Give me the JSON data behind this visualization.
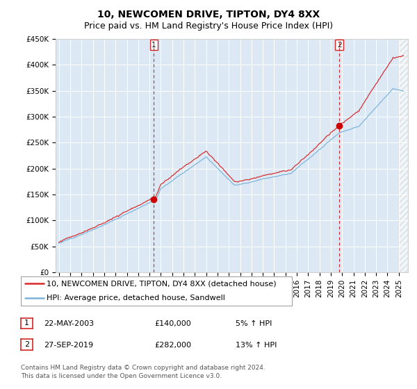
{
  "title": "10, NEWCOMEN DRIVE, TIPTON, DY4 8XX",
  "subtitle": "Price paid vs. HM Land Registry's House Price Index (HPI)",
  "bg_color": "#dce9f5",
  "grid_color": "#ffffff",
  "hpi_color": "#7ab3d9",
  "price_color": "#d62728",
  "marker_color": "#cc0000",
  "vline_color": "#d62728",
  "ylim": [
    0,
    450000
  ],
  "yticks": [
    0,
    50000,
    100000,
    150000,
    200000,
    250000,
    300000,
    350000,
    400000,
    450000
  ],
  "xlim_start": 1994.7,
  "xlim_end": 2025.8,
  "sale1_x": 2003.39,
  "sale1_y": 140000,
  "sale1_label": "1",
  "sale2_x": 2019.75,
  "sale2_y": 282000,
  "sale2_label": "2",
  "legend_line1": "10, NEWCOMEN DRIVE, TIPTON, DY4 8XX (detached house)",
  "legend_line2": "HPI: Average price, detached house, Sandwell",
  "table_row1_num": "1",
  "table_row1_date": "22-MAY-2003",
  "table_row1_price": "£140,000",
  "table_row1_hpi": "5% ↑ HPI",
  "table_row2_num": "2",
  "table_row2_date": "27-SEP-2019",
  "table_row2_price": "£282,000",
  "table_row2_hpi": "13% ↑ HPI",
  "footnote": "Contains HM Land Registry data © Crown copyright and database right 2024.\nThis data is licensed under the Open Government Licence v3.0.",
  "title_fontsize": 10,
  "subtitle_fontsize": 9,
  "tick_fontsize": 7.5,
  "legend_fontsize": 8,
  "table_fontsize": 8,
  "footnote_fontsize": 6.5
}
